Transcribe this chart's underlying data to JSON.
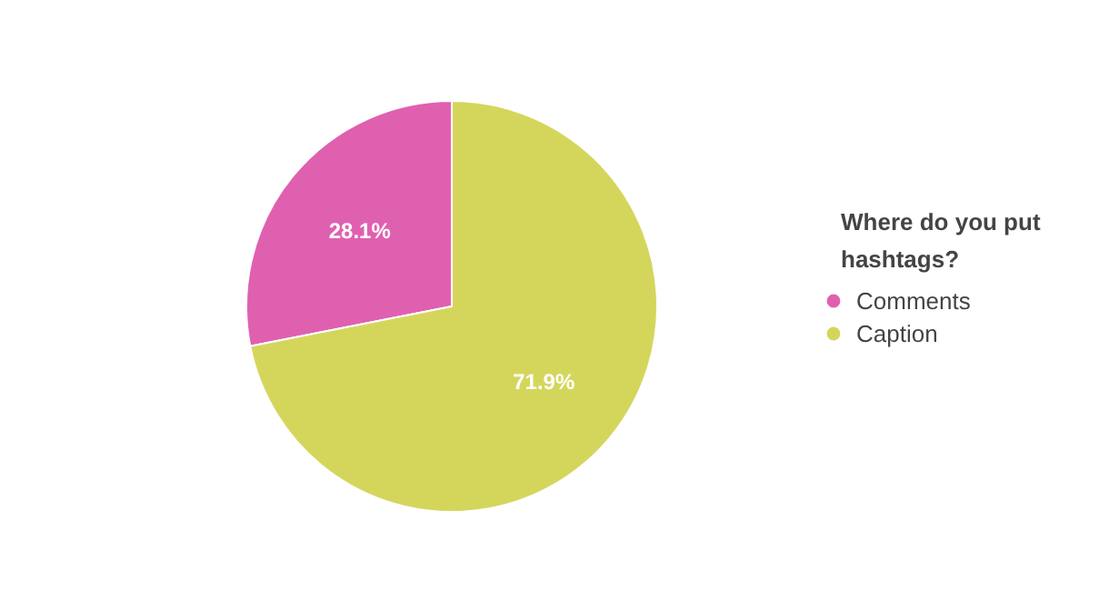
{
  "chart_data": {
    "type": "pie",
    "legend_title": "Where do you put hashtags?",
    "categories": [
      "Comments",
      "Caption"
    ],
    "values": [
      28.1,
      71.9
    ],
    "colors": [
      "#e060b0",
      "#d4d65c"
    ],
    "value_labels": [
      "28.1%",
      "71.9%"
    ],
    "legend": "right"
  }
}
